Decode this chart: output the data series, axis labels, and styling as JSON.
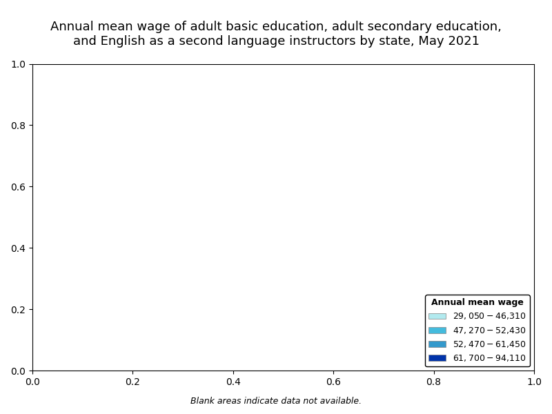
{
  "title": "Annual mean wage of adult basic education, adult secondary education,\nand English as a second language instructors by state, May 2021",
  "footnote": "Blank areas indicate data not available.",
  "legend_title": "Annual mean wage",
  "legend_items": [
    {
      "label": "$29,050 - $46,310",
      "color": "#b2eaef"
    },
    {
      "label": "$47,270 - $52,430",
      "color": "#44bbdd"
    },
    {
      "label": "$52,470 - $61,450",
      "color": "#3399cc"
    },
    {
      "label": "$61,700 - $94,110",
      "color": "#0033aa"
    }
  ],
  "state_colors": {
    "WA": "#0033aa",
    "OR": "#0033aa",
    "CA": "#0033aa",
    "NV": "#3399cc",
    "ID": "#3399cc",
    "MT": "#3399cc",
    "WY": "#3399cc",
    "UT": "#3399cc",
    "AZ": "#3399cc",
    "NM": "#3399cc",
    "CO": "#b2eaef",
    "ND": "#3399cc",
    "SD": "#b2eaef",
    "NE": "#b2eaef",
    "KS": "#b2eaef",
    "OK": "#3399cc",
    "TX": "#44bbdd",
    "MN": "#0033aa",
    "IA": "#3399cc",
    "MO": "#0033aa",
    "AR": "#3399cc",
    "LA": "#44bbdd",
    "WI": "#3399cc",
    "IL": "#0033aa",
    "MI": "#0033aa",
    "IN": "#0033aa",
    "OH": "#3399cc",
    "KY": "#b2eaef",
    "TN": "#44bbdd",
    "MS": "#b2eaef",
    "AL": "#b2eaef",
    "GA": "#b2eaef",
    "FL": "#44bbdd",
    "SC": "#3399cc",
    "NC": "#3399cc",
    "VA": "#0033aa",
    "WV": "#b2eaef",
    "MD": "#0033aa",
    "DC": "#0033aa",
    "DE": "#0033aa",
    "NJ": "#0033aa",
    "PA": "#3399cc",
    "NY": "#0033aa",
    "CT": "#0033aa",
    "RI": "#0033aa",
    "MA": "#0033aa",
    "VT": "#0033aa",
    "NH": "#0033aa",
    "ME": "#0033aa",
    "AK": "#ffffff",
    "HI": "#3399cc",
    "PR": "#b2eaef"
  },
  "no_data_color": "#ffffff",
  "background_color": "#ffffff",
  "border_color": "#333333",
  "title_fontsize": 13,
  "legend_fontsize": 9
}
